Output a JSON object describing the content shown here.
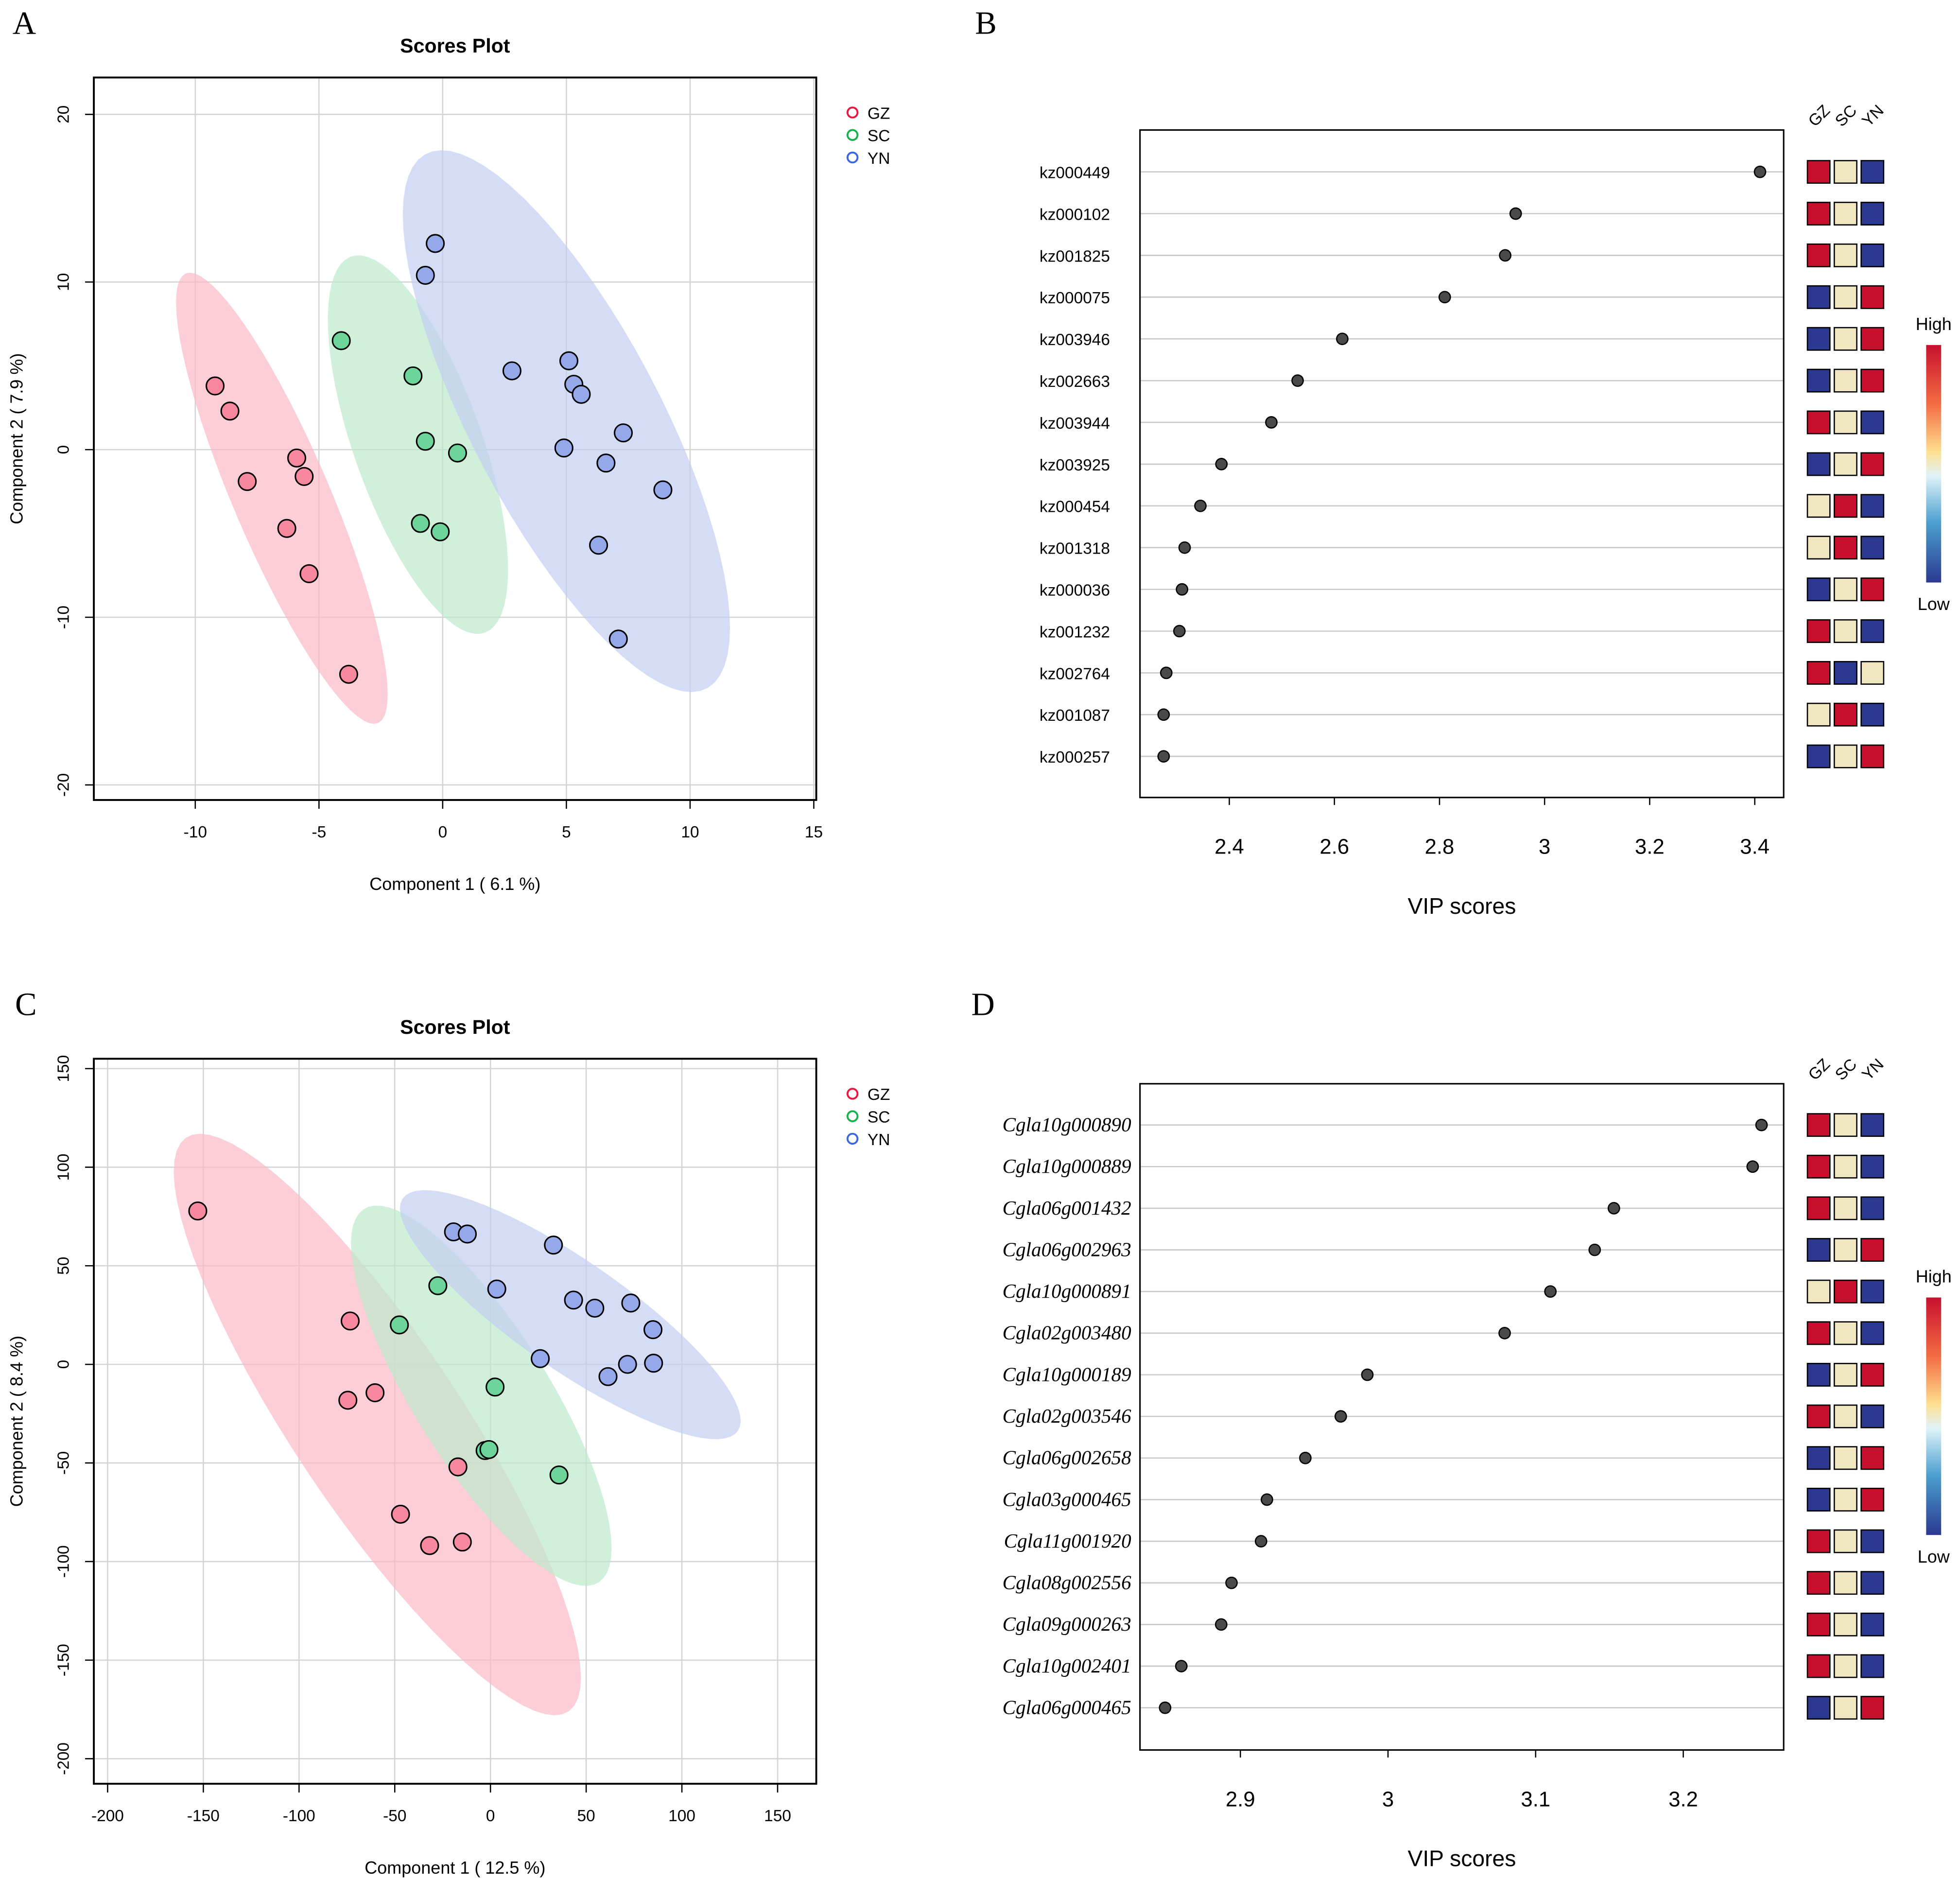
{
  "colors": {
    "GZ": "#F7889E",
    "SC": "#6DD49A",
    "YN": "#94A8EA",
    "GZ_ellipse": "#FBB9C8",
    "SC_ellipse": "#BDE9CC",
    "YN_ellipse": "#C3CDF2",
    "GZ_legend": "#E8173F",
    "SC_legend": "#12B24C",
    "YN_legend": "#3A67E0",
    "high": "#C8102E",
    "mid": "#F0E6C0",
    "low": "#2B3990"
  },
  "chart_data": [
    {
      "panel": "A",
      "type": "scatter",
      "title": "Scores Plot",
      "xlabel": "Component 1 ( 6.1 %)",
      "ylabel": "Component 2 ( 7.9 %)",
      "xlim": [
        -14.1,
        15.1
      ],
      "ylim": [
        -20.9,
        22.2
      ],
      "xticks": [
        -10,
        -5,
        0,
        5,
        10,
        15
      ],
      "yticks": [
        -20,
        -10,
        0,
        10,
        20
      ],
      "grid": true,
      "legend_position": "right",
      "legend": [
        "GZ",
        "SC",
        "YN"
      ],
      "series": [
        {
          "name": "GZ",
          "points": [
            [
              -9.2,
              3.8
            ],
            [
              -8.6,
              2.3
            ],
            [
              -7.9,
              -1.9
            ],
            [
              -5.9,
              -0.5
            ],
            [
              -5.6,
              -1.6
            ],
            [
              -6.3,
              -4.7
            ],
            [
              -5.4,
              -7.4
            ],
            [
              -3.8,
              -13.4
            ]
          ],
          "ellipse": {
            "center": [
              -6.5,
              -2.9
            ],
            "major": [
              3.9,
              -13.4
            ],
            "minor": [
              1.76,
              1.26
            ]
          }
        },
        {
          "name": "SC",
          "points": [
            [
              -4.1,
              6.5
            ],
            [
              -1.2,
              4.4
            ],
            [
              -0.7,
              0.5
            ],
            [
              0.6,
              -0.2
            ],
            [
              -0.9,
              -4.4
            ],
            [
              -0.1,
              -4.9
            ]
          ],
          "ellipse": {
            "center": [
              -1.0,
              0.3
            ],
            "major": [
              2.74,
              -11.2
            ],
            "minor": [
              2.4,
              1.45
            ]
          }
        },
        {
          "name": "YN",
          "points": [
            [
              -0.3,
              12.3
            ],
            [
              -0.7,
              10.4
            ],
            [
              2.8,
              4.7
            ],
            [
              5.1,
              5.3
            ],
            [
              5.3,
              3.9
            ],
            [
              5.6,
              3.3
            ],
            [
              7.3,
              1.0
            ],
            [
              4.9,
              0.1
            ],
            [
              6.6,
              -0.8
            ],
            [
              8.9,
              -2.4
            ],
            [
              6.3,
              -5.7
            ],
            [
              7.1,
              -11.3
            ]
          ],
          "ellipse": {
            "center": [
              5.0,
              1.7
            ],
            "major": [
              5.73,
              -15.9
            ],
            "minor": [
              3.3,
              2.9
            ]
          }
        }
      ]
    },
    {
      "panel": "B",
      "type": "scatter",
      "title": "",
      "xlabel": "VIP scores",
      "xlim": [
        2.23,
        3.455
      ],
      "xticks": [
        2.4,
        2.6,
        2.8,
        3.0,
        3.2,
        3.4
      ],
      "label_style": "normal",
      "heatmap_columns": [
        "GZ",
        "SC",
        "YN"
      ],
      "colorbar": {
        "high": "High",
        "low": "Low"
      },
      "features": [
        "kz000449",
        "kz000102",
        "kz001825",
        "kz000075",
        "kz003946",
        "kz002663",
        "kz003944",
        "kz003925",
        "kz000454",
        "kz001318",
        "kz000036",
        "kz001232",
        "kz002764",
        "kz001087",
        "kz000257"
      ],
      "values": [
        3.41,
        2.945,
        2.925,
        2.81,
        2.615,
        2.53,
        2.48,
        2.385,
        2.345,
        2.315,
        2.31,
        2.305,
        2.28,
        2.275,
        2.275
      ],
      "heatmap": [
        [
          "high",
          "mid",
          "low"
        ],
        [
          "high",
          "mid",
          "low"
        ],
        [
          "high",
          "mid",
          "low"
        ],
        [
          "low",
          "mid",
          "high"
        ],
        [
          "low",
          "mid",
          "high"
        ],
        [
          "low",
          "mid",
          "high"
        ],
        [
          "high",
          "mid",
          "low"
        ],
        [
          "low",
          "mid",
          "high"
        ],
        [
          "mid",
          "high",
          "low"
        ],
        [
          "mid",
          "high",
          "low"
        ],
        [
          "low",
          "mid",
          "high"
        ],
        [
          "high",
          "mid",
          "low"
        ],
        [
          "high",
          "low",
          "mid"
        ],
        [
          "mid",
          "high",
          "low"
        ],
        [
          "low",
          "mid",
          "high"
        ]
      ]
    },
    {
      "panel": "C",
      "type": "scatter",
      "title": "Scores Plot",
      "xlabel": "Component 1 ( 12.5 %)",
      "ylabel": "Component 2 ( 8.4 %)",
      "xlim": [
        -207.2,
        170.2
      ],
      "ylim": [
        -212.7,
        155
      ],
      "xticks": [
        -200,
        -150,
        -100,
        -50,
        0,
        50,
        100,
        150
      ],
      "yticks": [
        -200,
        -150,
        -100,
        -50,
        0,
        50,
        100,
        150
      ],
      "grid": true,
      "legend_position": "right",
      "legend": [
        "GZ",
        "SC",
        "YN"
      ],
      "series": [
        {
          "name": "GZ",
          "points": [
            [
              -152.9,
              77.8
            ],
            [
              -73.3,
              22
            ],
            [
              -74.5,
              -18.2
            ],
            [
              -60.3,
              -14.4
            ],
            [
              -17,
              -52
            ],
            [
              -47,
              -76
            ],
            [
              -31.8,
              -91.9
            ],
            [
              -14.7,
              -90.1
            ]
          ],
          "ellipse": {
            "center": [
              -59.1,
              -30.5
            ],
            "major": [
              100.2,
              -145.3
            ],
            "minor": [
              35.7,
              25.2
            ]
          }
        },
        {
          "name": "SC",
          "points": [
            [
              -27.5,
              39.9
            ],
            [
              -47.6,
              20
            ],
            [
              2.4,
              -11.5
            ],
            [
              -2.8,
              -43.7
            ],
            [
              -0.8,
              -43.2
            ],
            [
              35.8,
              -56.1
            ]
          ],
          "ellipse": {
            "center": [
              -4.8,
              -15.9
            ],
            "major": [
              61.6,
              -94.5
            ],
            "minor": [
              29,
              19.4
            ]
          }
        },
        {
          "name": "YN",
          "points": [
            [
              -19.3,
              67.2
            ],
            [
              -12.1,
              66.1
            ],
            [
              32.9,
              60.5
            ],
            [
              3.3,
              38.2
            ],
            [
              43.4,
              32.6
            ],
            [
              54.5,
              28.5
            ],
            [
              73.3,
              31.1
            ],
            [
              84.9,
              17.6
            ],
            [
              26,
              2.9
            ],
            [
              71.6,
              0
            ],
            [
              85.2,
              0.6
            ],
            [
              61.4,
              -6.2
            ]
          ],
          "ellipse": {
            "center": [
              41.7,
              25.2
            ],
            "major": [
              87.7,
              -58.7
            ],
            "minor": [
              15.2,
              23.3
            ]
          }
        }
      ]
    },
    {
      "panel": "D",
      "type": "scatter",
      "title": "",
      "xlabel": "VIP scores",
      "xlim": [
        2.832,
        3.268
      ],
      "xticks": [
        2.9,
        3.0,
        3.1,
        3.2
      ],
      "label_style": "italic",
      "heatmap_columns": [
        "GZ",
        "SC",
        "YN"
      ],
      "colorbar": {
        "high": "High",
        "low": "Low"
      },
      "features": [
        "Cgla10g000890",
        "Cgla10g000889",
        "Cgla06g001432",
        "Cgla06g002963",
        "Cgla10g000891",
        "Cgla02g003480",
        "Cgla10g000189",
        "Cgla02g003546",
        "Cgla06g002658",
        "Cgla03g000465",
        "Cgla11g001920",
        "Cgla08g002556",
        "Cgla09g000263",
        "Cgla10g002401",
        "Cgla06g000465"
      ],
      "values": [
        3.253,
        3.247,
        3.153,
        3.14,
        3.11,
        3.079,
        2.986,
        2.968,
        2.944,
        2.918,
        2.914,
        2.894,
        2.887,
        2.86,
        2.849
      ],
      "heatmap": [
        [
          "high",
          "mid",
          "low"
        ],
        [
          "high",
          "mid",
          "low"
        ],
        [
          "high",
          "mid",
          "low"
        ],
        [
          "low",
          "mid",
          "high"
        ],
        [
          "mid",
          "high",
          "low"
        ],
        [
          "high",
          "mid",
          "low"
        ],
        [
          "low",
          "mid",
          "high"
        ],
        [
          "high",
          "mid",
          "low"
        ],
        [
          "low",
          "mid",
          "high"
        ],
        [
          "low",
          "mid",
          "high"
        ],
        [
          "high",
          "mid",
          "low"
        ],
        [
          "high",
          "mid",
          "low"
        ],
        [
          "high",
          "mid",
          "low"
        ],
        [
          "high",
          "mid",
          "low"
        ],
        [
          "low",
          "mid",
          "high"
        ]
      ]
    }
  ]
}
